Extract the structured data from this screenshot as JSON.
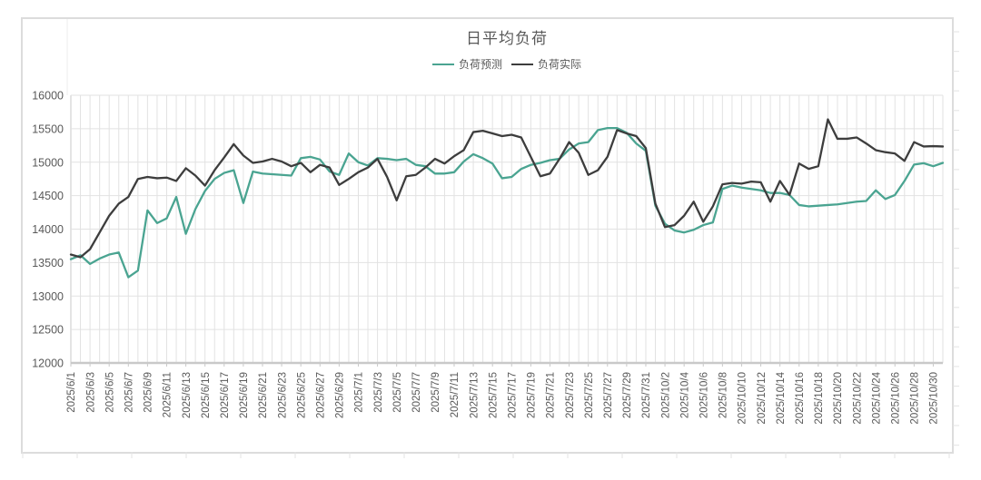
{
  "chart": {
    "title": "日平均负荷",
    "legend_items": [
      "负荷预测",
      "负荷实际"
    ]
  },
  "chart_data": {
    "type": "line",
    "title": "日平均负荷",
    "xlabel": "",
    "ylabel": "",
    "ylim": [
      12000,
      16000
    ],
    "y_tick_step": 500,
    "grid": true,
    "legend_position": "top-center",
    "x_labels_shown_every": 2,
    "x_label_rotation_deg": 90,
    "x": [
      "2025/6/1",
      "2025/6/2",
      "2025/6/3",
      "2025/6/4",
      "2025/6/5",
      "2025/6/6",
      "2025/6/7",
      "2025/6/8",
      "2025/6/9",
      "2025/6/10",
      "2025/6/11",
      "2025/6/12",
      "2025/6/13",
      "2025/6/14",
      "2025/6/15",
      "2025/6/16",
      "2025/6/17",
      "2025/6/18",
      "2025/6/19",
      "2025/6/20",
      "2025/6/21",
      "2025/6/22",
      "2025/6/23",
      "2025/6/24",
      "2025/6/25",
      "2025/6/26",
      "2025/6/27",
      "2025/6/28",
      "2025/6/29",
      "2025/6/30",
      "2025/7/1",
      "2025/7/2",
      "2025/7/3",
      "2025/7/4",
      "2025/7/5",
      "2025/7/6",
      "2025/7/7",
      "2025/7/8",
      "2025/7/9",
      "2025/7/10",
      "2025/7/11",
      "2025/7/12",
      "2025/7/13",
      "2025/7/14",
      "2025/7/15",
      "2025/7/16",
      "2025/7/17",
      "2025/7/18",
      "2025/7/19",
      "2025/7/20",
      "2025/7/21",
      "2025/7/22",
      "2025/7/23",
      "2025/7/24",
      "2025/7/25",
      "2025/7/26",
      "2025/7/27",
      "2025/7/28",
      "2025/7/29",
      "2025/7/30",
      "2025/7/31",
      "2025/10/1",
      "2025/10/2",
      "2025/10/3",
      "2025/10/4",
      "2025/10/5",
      "2025/10/6",
      "2025/10/7",
      "2025/10/8",
      "2025/10/9",
      "2025/10/10",
      "2025/10/11",
      "2025/10/12",
      "2025/10/13",
      "2025/10/14",
      "2025/10/15",
      "2025/10/16",
      "2025/10/17",
      "2025/10/18",
      "2025/10/19",
      "2025/10/20",
      "2025/10/21",
      "2025/10/22",
      "2025/10/23",
      "2025/10/24",
      "2025/10/25",
      "2025/10/26",
      "2025/10/27",
      "2025/10/28",
      "2025/10/29",
      "2025/10/30",
      "2025/10/31"
    ],
    "series": [
      {
        "name": "负荷预测",
        "color": "#4aa491",
        "values": [
          13550,
          13610,
          13480,
          13560,
          13620,
          13650,
          13280,
          13380,
          14280,
          14090,
          14160,
          14480,
          13930,
          14300,
          14570,
          14750,
          14840,
          14880,
          14390,
          14860,
          14830,
          14820,
          14810,
          14800,
          15060,
          15080,
          15040,
          14860,
          14810,
          15130,
          15000,
          14950,
          15060,
          15050,
          15030,
          15050,
          14960,
          14940,
          14830,
          14830,
          14850,
          15010,
          15120,
          15060,
          14980,
          14760,
          14780,
          14900,
          14960,
          14990,
          15030,
          15050,
          15190,
          15280,
          15300,
          15480,
          15510,
          15510,
          15440,
          15280,
          15170,
          14350,
          14080,
          13980,
          13950,
          13990,
          14060,
          14100,
          14600,
          14650,
          14620,
          14600,
          14580,
          14540,
          14540,
          14510,
          14360,
          14340,
          14350,
          14360,
          14370,
          14390,
          14410,
          14420,
          14580,
          14450,
          14510,
          14720,
          14965,
          14985,
          14940,
          14990
        ]
      },
      {
        "name": "负荷实际",
        "color": "#3d3d3d",
        "values": [
          13620,
          13580,
          13700,
          13950,
          14200,
          14380,
          14480,
          14750,
          14780,
          14760,
          14770,
          14720,
          14910,
          14800,
          14650,
          14880,
          15070,
          15270,
          15100,
          14990,
          15010,
          15050,
          15010,
          14940,
          14990,
          14850,
          14960,
          14920,
          14660,
          14750,
          14850,
          14920,
          15050,
          14780,
          14430,
          14790,
          14810,
          14920,
          15050,
          14980,
          15090,
          15180,
          15450,
          15470,
          15430,
          15390,
          15410,
          15370,
          15080,
          14790,
          14830,
          15050,
          15300,
          15140,
          14810,
          14880,
          15080,
          15480,
          15430,
          15390,
          15210,
          14380,
          14030,
          14060,
          14200,
          14410,
          14110,
          14340,
          14670,
          14690,
          14680,
          14710,
          14700,
          14410,
          14720,
          14510,
          14980,
          14900,
          14940,
          15640,
          15350,
          15350,
          15370,
          15280,
          15180,
          15150,
          15130,
          15020,
          15300,
          15235,
          15240,
          15235
        ]
      }
    ],
    "y_tick_labels": [
      "12000",
      "12500",
      "13000",
      "13500",
      "14000",
      "14500",
      "15000",
      "15500",
      "16000"
    ]
  },
  "style": {
    "grid_color": "#e2e2e2",
    "axis_color": "#c9c9c9",
    "tick_label_color": "#595959",
    "title_color": "#595959",
    "frame_color": "#dcdcdc",
    "forecast_color": "#4aa491",
    "actual_color": "#3d3d3d"
  }
}
